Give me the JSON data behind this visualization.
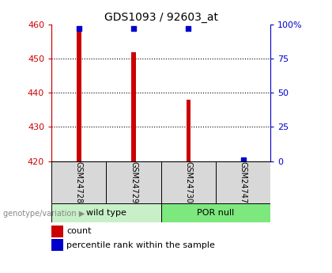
{
  "title": "GDS1093 / 92603_at",
  "samples": [
    "GSM24728",
    "GSM24729",
    "GSM24730",
    "GSM24747"
  ],
  "counts": [
    458,
    452,
    438,
    421
  ],
  "percentiles": [
    97,
    97,
    97,
    1
  ],
  "groups": [
    {
      "label": "wild type",
      "indices": [
        0,
        1
      ],
      "color": "#c8f0c8"
    },
    {
      "label": "POR null",
      "indices": [
        2,
        3
      ],
      "color": "#7de87d"
    }
  ],
  "ylim_left": [
    420,
    460
  ],
  "ylim_right": [
    0,
    100
  ],
  "yticks_left": [
    420,
    430,
    440,
    450,
    460
  ],
  "yticks_right": [
    0,
    25,
    50,
    75,
    100
  ],
  "yticklabels_right": [
    "0",
    "25",
    "50",
    "75",
    "100%"
  ],
  "bar_color": "#cc0000",
  "marker_color": "#0000cc",
  "bar_width": 0.08,
  "bg_color": "#ffffff",
  "plot_bg": "#ffffff",
  "left_axis_color": "#cc0000",
  "right_axis_color": "#0000cc",
  "legend_items": [
    "count",
    "percentile rank within the sample"
  ],
  "genotype_label": "genotype/variation"
}
